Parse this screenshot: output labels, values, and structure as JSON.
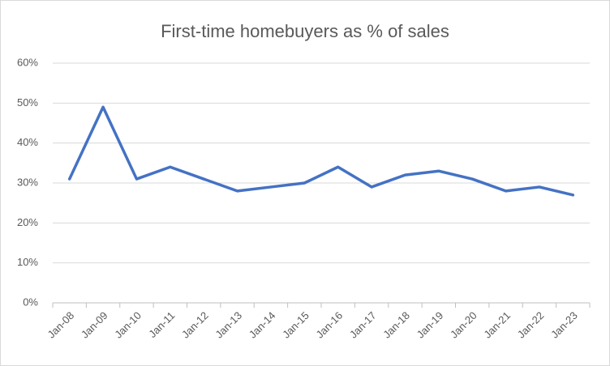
{
  "chart_data": {
    "type": "line",
    "title": "First-time homebuyers  as % of sales",
    "categories": [
      "Jan-08",
      "Jan-09",
      "Jan-10",
      "Jan-11",
      "Jan-12",
      "Jan-13",
      "Jan-14",
      "Jan-15",
      "Jan-16",
      "Jan-17",
      "Jan-18",
      "Jan-19",
      "Jan-20",
      "Jan-21",
      "Jan-22",
      "Jan-23"
    ],
    "values": [
      31,
      49,
      31,
      34,
      31,
      28,
      29,
      30,
      34,
      29,
      32,
      33,
      31,
      28,
      29,
      27
    ],
    "color": "#4472c4",
    "ylim": [
      0,
      60
    ],
    "yticks": [
      {
        "value": 0,
        "label": "0%"
      },
      {
        "value": 10,
        "label": "10%"
      },
      {
        "value": 20,
        "label": "20%"
      },
      {
        "value": 30,
        "label": "30%"
      },
      {
        "value": 40,
        "label": "40%"
      },
      {
        "value": 50,
        "label": "50%"
      },
      {
        "value": 60,
        "label": "60%"
      }
    ],
    "grid": true
  }
}
